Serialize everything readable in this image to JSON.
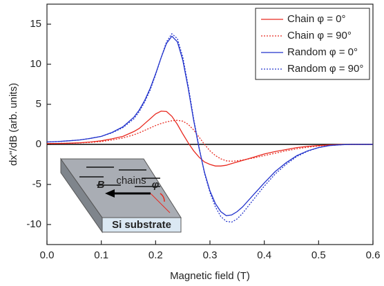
{
  "chart_data": {
    "type": "line",
    "xlabel": "Magnetic field (T)",
    "ylabel": "dx''/dB (arb. units)",
    "x": [
      0,
      0.02,
      0.04,
      0.06,
      0.08,
      0.1,
      0.12,
      0.14,
      0.16,
      0.17,
      0.18,
      0.19,
      0.2,
      0.21,
      0.22,
      0.23,
      0.24,
      0.25,
      0.26,
      0.27,
      0.28,
      0.29,
      0.3,
      0.31,
      0.32,
      0.33,
      0.34,
      0.35,
      0.36,
      0.38,
      0.4,
      0.42,
      0.44,
      0.46,
      0.48,
      0.5,
      0.52,
      0.54,
      0.56,
      0.58,
      0.6
    ],
    "series": [
      {
        "name": "Chain φ = 0°",
        "color": "#e8281e",
        "linestyle": "solid",
        "values": [
          0.1,
          0.12,
          0.15,
          0.2,
          0.3,
          0.45,
          0.7,
          1.0,
          1.6,
          2.0,
          2.6,
          3.2,
          3.8,
          4.15,
          4.1,
          3.5,
          2.5,
          1.3,
          0.2,
          -0.8,
          -1.6,
          -2.2,
          -2.5,
          -2.7,
          -2.7,
          -2.6,
          -2.4,
          -2.2,
          -2.0,
          -1.6,
          -1.2,
          -0.9,
          -0.65,
          -0.4,
          -0.25,
          -0.15,
          -0.07,
          -0.03,
          0,
          0,
          0
        ]
      },
      {
        "name": "Chain φ = 90°",
        "color": "#e8281e",
        "linestyle": "dotted",
        "values": [
          0.1,
          0.12,
          0.14,
          0.18,
          0.25,
          0.35,
          0.55,
          0.8,
          1.2,
          1.45,
          1.75,
          2.05,
          2.35,
          2.6,
          2.8,
          2.95,
          3.0,
          2.9,
          2.5,
          1.8,
          0.9,
          0.0,
          -0.8,
          -1.4,
          -1.8,
          -2.05,
          -2.1,
          -2.05,
          -1.95,
          -1.7,
          -1.4,
          -1.1,
          -0.8,
          -0.55,
          -0.35,
          -0.2,
          -0.1,
          -0.04,
          0,
          0,
          0
        ]
      },
      {
        "name": "Random φ = 0°",
        "color": "#2233cc",
        "linestyle": "solid",
        "values": [
          0.3,
          0.35,
          0.45,
          0.55,
          0.75,
          1.0,
          1.5,
          2.2,
          3.4,
          4.3,
          5.5,
          7.0,
          8.8,
          10.8,
          12.6,
          13.5,
          12.8,
          10.5,
          7.0,
          3.0,
          -0.5,
          -3.5,
          -5.8,
          -7.4,
          -8.4,
          -8.9,
          -8.8,
          -8.4,
          -7.8,
          -6.3,
          -4.8,
          -3.4,
          -2.3,
          -1.4,
          -0.8,
          -0.4,
          -0.15,
          -0.05,
          0,
          0,
          0
        ]
      },
      {
        "name": "Random φ = 90°",
        "color": "#2233cc",
        "linestyle": "dotted",
        "values": [
          0.3,
          0.35,
          0.45,
          0.55,
          0.75,
          1.0,
          1.45,
          2.1,
          3.2,
          4.1,
          5.3,
          6.8,
          8.7,
          10.8,
          12.8,
          13.8,
          13.2,
          10.9,
          7.3,
          3.2,
          -0.4,
          -3.6,
          -6.0,
          -7.8,
          -9.0,
          -9.6,
          -9.7,
          -9.3,
          -8.6,
          -6.9,
          -5.2,
          -3.7,
          -2.5,
          -1.5,
          -0.85,
          -0.4,
          -0.15,
          -0.05,
          0,
          0,
          0
        ]
      }
    ],
    "xlim": [
      0,
      0.6
    ],
    "xticks": [
      {
        "value": 0,
        "label": "0.0"
      },
      0.1,
      0.2,
      0.3,
      0.4,
      0.5,
      0.6
    ],
    "ylim": [
      -12.5,
      17.5
    ],
    "yticks": [
      -10,
      -5,
      0,
      5,
      10,
      15
    ],
    "hlines": [
      0
    ],
    "legend": "upper right",
    "annotations": [
      "chains",
      "B",
      "φ",
      "Si substrate"
    ]
  }
}
